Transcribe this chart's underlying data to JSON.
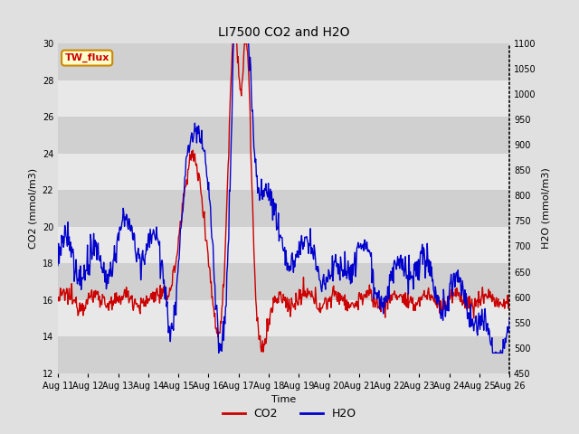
{
  "title": "LI7500 CO2 and H2O",
  "xlabel": "Time",
  "ylabel_left": "CO2 (mmol/m3)",
  "ylabel_right": "H2O (mmol/m3)",
  "ylim_left": [
    12,
    30
  ],
  "ylim_right": [
    450,
    1100
  ],
  "yticks_left": [
    12,
    14,
    16,
    18,
    20,
    22,
    24,
    26,
    28,
    30
  ],
  "yticks_right": [
    450,
    500,
    550,
    600,
    650,
    700,
    750,
    800,
    850,
    900,
    950,
    1000,
    1050,
    1100
  ],
  "xtick_labels": [
    "Aug 11",
    "Aug 12",
    "Aug 13",
    "Aug 14",
    "Aug 15",
    "Aug 16",
    "Aug 17",
    "Aug 18",
    "Aug 19",
    "Aug 20",
    "Aug 21",
    "Aug 22",
    "Aug 23",
    "Aug 24",
    "Aug 25",
    "Aug 26"
  ],
  "co2_color": "#cc0000",
  "h2o_color": "#0000cc",
  "bg_color": "#e0e0e0",
  "plot_bg_light": "#e8e8e8",
  "plot_bg_dark": "#d0d0d0",
  "annotation_text": "TW_flux",
  "annotation_bg": "#ffffcc",
  "annotation_border": "#cc8800",
  "legend_co2": "CO2",
  "legend_h2o": "H2O"
}
